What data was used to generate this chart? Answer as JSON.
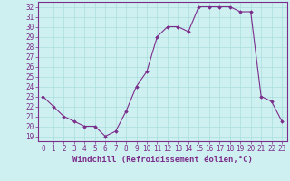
{
  "x": [
    0,
    1,
    2,
    3,
    4,
    5,
    6,
    7,
    8,
    9,
    10,
    11,
    12,
    13,
    14,
    15,
    16,
    17,
    18,
    19,
    20,
    21,
    22,
    23
  ],
  "y": [
    23.0,
    22.0,
    21.0,
    20.5,
    20.0,
    20.0,
    19.0,
    19.5,
    21.5,
    24.0,
    25.5,
    29.0,
    30.0,
    30.0,
    29.5,
    32.0,
    32.0,
    32.0,
    32.0,
    31.5,
    31.5,
    23.0,
    22.5,
    20.5
  ],
  "line_color": "#7b2d8b",
  "marker": "D",
  "marker_size": 1.8,
  "background_color": "#cff0f0",
  "grid_color": "#aadddd",
  "ylabel_ticks": [
    19,
    20,
    21,
    22,
    23,
    24,
    25,
    26,
    27,
    28,
    29,
    30,
    31,
    32
  ],
  "xlabel": "Windchill (Refroidissement éolien,°C)",
  "xlim": [
    -0.5,
    23.5
  ],
  "ylim": [
    18.5,
    32.5
  ],
  "xlabel_fontsize": 6.5,
  "tick_fontsize": 5.5,
  "spine_color": "#7b2d8b"
}
